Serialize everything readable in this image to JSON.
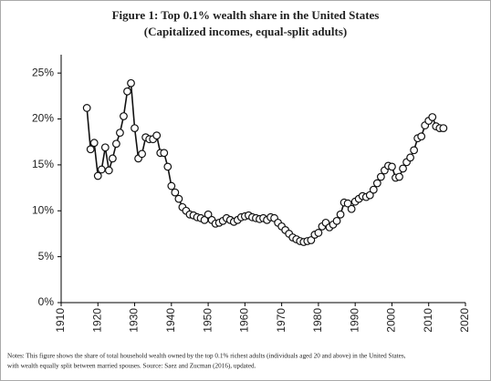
{
  "chart_data": {
    "type": "line",
    "title": "Figure 1:  Top 0.1% wealth share in the United States",
    "subtitle": "(Capitalized incomes, equal-split adults)",
    "notes": [
      "Notes: This figure shows the share of total household wealth owned by the top 0.1% richest adults (individuals aged 20 and above) in the United States,",
      "with wealth equally split between married spouses. Source: Saez and Zucman (2016), updated."
    ],
    "x": [
      1917,
      1918,
      1919,
      1920,
      1921,
      1922,
      1923,
      1924,
      1925,
      1926,
      1927,
      1928,
      1929,
      1930,
      1931,
      1932,
      1933,
      1934,
      1935,
      1936,
      1937,
      1938,
      1939,
      1940,
      1941,
      1942,
      1943,
      1944,
      1945,
      1946,
      1947,
      1948,
      1949,
      1950,
      1951,
      1952,
      1953,
      1954,
      1955,
      1956,
      1957,
      1958,
      1959,
      1960,
      1961,
      1962,
      1963,
      1964,
      1965,
      1966,
      1967,
      1968,
      1969,
      1970,
      1971,
      1972,
      1973,
      1974,
      1975,
      1976,
      1977,
      1978,
      1979,
      1980,
      1981,
      1982,
      1983,
      1984,
      1985,
      1986,
      1987,
      1988,
      1989,
      1990,
      1991,
      1992,
      1993,
      1994,
      1995,
      1996,
      1997,
      1998,
      1999,
      2000,
      2001,
      2002,
      2003,
      2004,
      2005,
      2006,
      2007,
      2008,
      2009,
      2010,
      2011,
      2012,
      2013,
      2014
    ],
    "series": [
      {
        "color": "#111111",
        "values": [
          21.2,
          16.7,
          17.4,
          13.8,
          14.5,
          16.9,
          14.4,
          15.7,
          17.3,
          18.5,
          20.3,
          23.0,
          23.9,
          19.0,
          15.7,
          16.2,
          18.0,
          17.8,
          17.8,
          18.2,
          16.3,
          16.3,
          14.8,
          12.7,
          12.0,
          11.3,
          10.4,
          10.0,
          9.6,
          9.5,
          9.3,
          9.2,
          9.0,
          9.6,
          9.0,
          8.6,
          8.7,
          8.9,
          9.2,
          9.0,
          8.8,
          9.0,
          9.3,
          9.4,
          9.5,
          9.3,
          9.2,
          9.1,
          9.2,
          9.0,
          9.3,
          9.2,
          8.7,
          8.3,
          7.9,
          7.5,
          7.1,
          6.9,
          6.7,
          6.6,
          6.7,
          6.8,
          7.4,
          7.6,
          8.3,
          8.7,
          8.2,
          8.5,
          8.9,
          9.6,
          10.9,
          10.8,
          10.2,
          11.0,
          11.3,
          11.6,
          11.5,
          11.7,
          12.3,
          13.0,
          13.7,
          14.4,
          14.9,
          14.8,
          13.6,
          13.7,
          14.6,
          15.3,
          15.8,
          16.6,
          17.9,
          18.1,
          19.3,
          19.8,
          20.2,
          19.2,
          19.0,
          19.0
        ]
      }
    ],
    "xlim": [
      1910,
      2020
    ],
    "xticks": [
      1910,
      1920,
      1930,
      1940,
      1950,
      1960,
      1970,
      1980,
      1990,
      2000,
      2010,
      2020
    ],
    "ylim": [
      0,
      27
    ],
    "yticks": [
      {
        "value": 0,
        "label": "0%"
      },
      {
        "value": 5,
        "label": "5%"
      },
      {
        "value": 10,
        "label": "10%"
      },
      {
        "value": 15,
        "label": "15%"
      },
      {
        "value": 20,
        "label": "20%"
      },
      {
        "value": 25,
        "label": "25%"
      }
    ]
  }
}
